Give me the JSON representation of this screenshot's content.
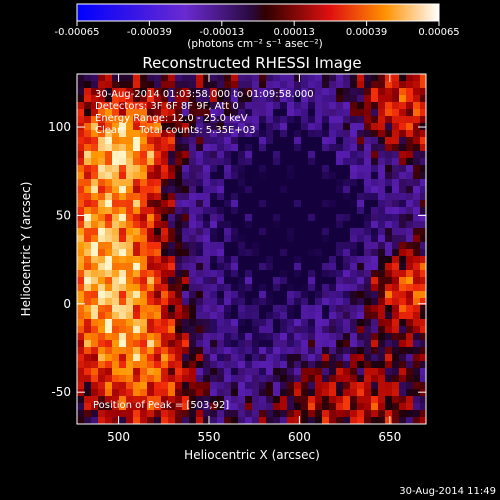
{
  "colorbar": {
    "tick_labels": [
      "-0.00065",
      "-0.00039",
      "-0.00013",
      "0.00013",
      "0.00039",
      "0.00065"
    ],
    "units_label": "(photons cm⁻² s⁻¹ asec⁻²)"
  },
  "chart_data": {
    "type": "heatmap",
    "title": "Reconstructed RHESSI Image",
    "xlabel": "Heliocentric X (arcsec)",
    "ylabel": "Heliocentric Y (arcsec)",
    "xlim": [
      477,
      670
    ],
    "ylim": [
      -68,
      130
    ],
    "x_ticks": [
      500,
      550,
      600,
      650
    ],
    "y_ticks": [
      -50,
      0,
      50,
      100
    ],
    "color_range": [
      -0.00065,
      0.00065
    ],
    "info_lines": [
      "30-Aug-2014 01:03:58.000 to 01:09:58.000",
      "Detectors: 3F 6F 8F 9F, Att 0",
      "Energy Range: 12.0 - 25.0 keV",
      "Clean     Total counts: 5.35E+03"
    ],
    "peak_label": "Position of Peak = [503,92]",
    "peak_position": [
      503,
      92
    ]
  },
  "timestamp": "30-Aug-2014 11:49"
}
